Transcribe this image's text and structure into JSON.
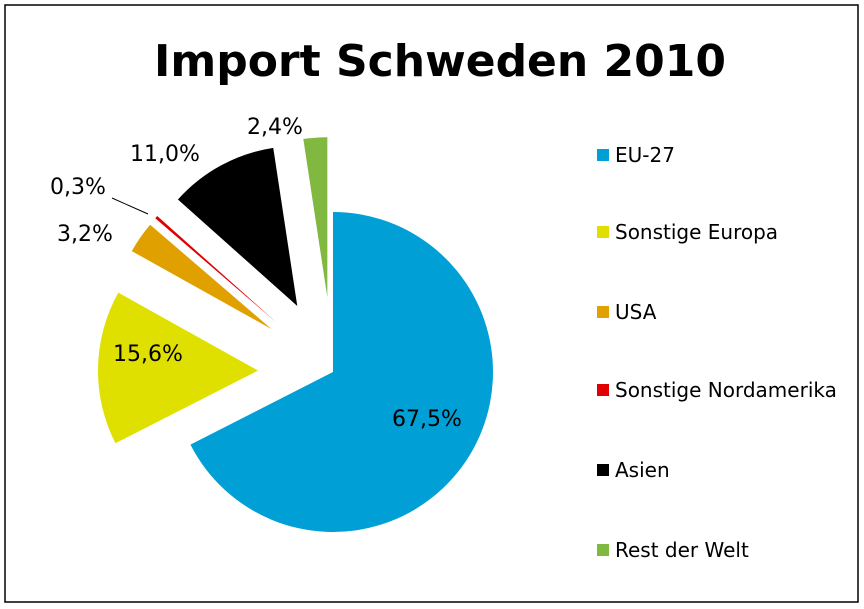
{
  "chart_data": {
    "type": "pie",
    "title": "Import Schweden 2010",
    "categories": [
      "EU-27",
      "Sonstige Europa",
      "USA",
      "Sonstige Nordamerika",
      "Asien",
      "Rest der Welt"
    ],
    "values": [
      67.5,
      15.6,
      3.2,
      0.3,
      11.0,
      2.4
    ],
    "value_labels": [
      "67,5%",
      "15,6%",
      "3,2%",
      "0,3%",
      "11,0%",
      "2,4%"
    ],
    "colors": [
      "#009fd6",
      "#e0e000",
      "#e0a000",
      "#e00000",
      "#000000",
      "#80b840"
    ],
    "legend": "right"
  }
}
